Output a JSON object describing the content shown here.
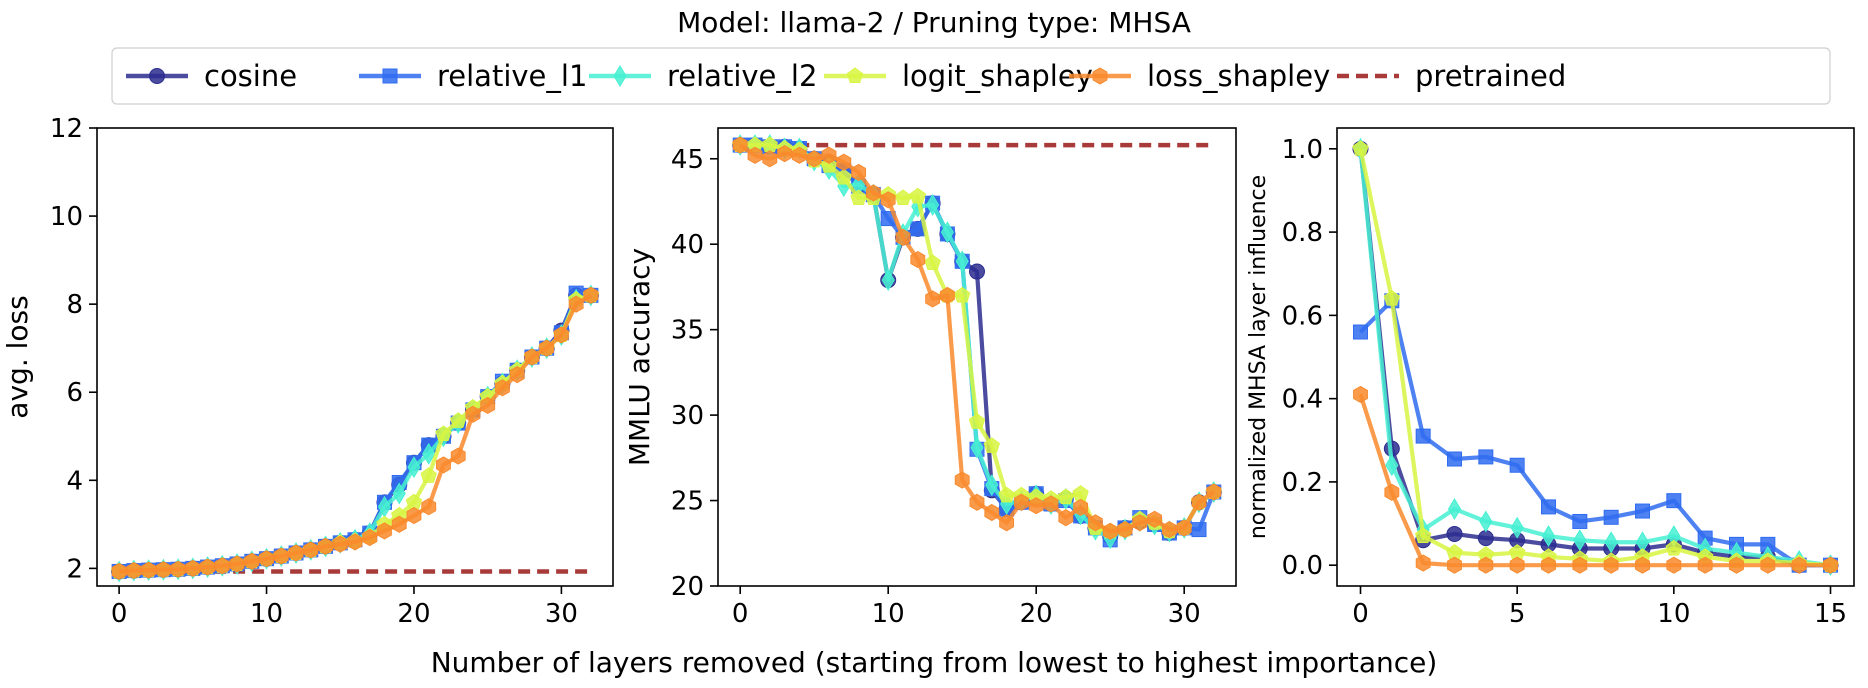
{
  "title": "Model: llama-2 / Pruning type: MHSA",
  "shared_xlabel": "Number of layers removed (starting from lowest to highest importance)",
  "legend": [
    {
      "name": "cosine",
      "color": "#2b2d8f",
      "marker": "circle"
    },
    {
      "name": "relative_l1",
      "color": "#2f6cf0",
      "marker": "square"
    },
    {
      "name": "relative_l2",
      "color": "#46f0d2",
      "marker": "diamond"
    },
    {
      "name": "logit_shapley",
      "color": "#d8f542",
      "marker": "pentagon"
    },
    {
      "name": "loss_shapley",
      "color": "#f98a2d",
      "marker": "hexagon"
    },
    {
      "name": "pretrained",
      "color": "#a83a3a",
      "marker": "dashed-line"
    }
  ],
  "chart_data": [
    {
      "type": "line",
      "xlabel": "",
      "ylabel": "avg. loss",
      "xlim": [
        -1.5,
        33.5
      ],
      "ylim": [
        1.6,
        12
      ],
      "xticks": [
        0,
        10,
        20,
        30
      ],
      "yticks": [
        2,
        4,
        6,
        8,
        10,
        12
      ],
      "grid": false,
      "baseline": {
        "name": "pretrained",
        "y": 1.93,
        "x": [
          0,
          32
        ]
      },
      "series": [
        {
          "name": "cosine",
          "x": [
            0,
            1,
            2,
            3,
            4,
            5,
            6,
            7,
            8,
            9,
            10,
            11,
            12,
            13,
            14,
            15,
            16,
            17,
            18,
            19,
            20,
            21,
            22,
            23,
            24,
            25,
            26,
            27,
            28,
            29,
            30,
            31,
            32
          ],
          "values": [
            1.93,
            1.95,
            1.96,
            1.97,
            1.98,
            2.0,
            2.03,
            2.06,
            2.1,
            2.16,
            2.22,
            2.28,
            2.35,
            2.42,
            2.5,
            2.58,
            2.65,
            2.8,
            3.5,
            3.9,
            4.4,
            4.8,
            5.0,
            5.3,
            5.6,
            5.9,
            6.2,
            6.5,
            6.8,
            7.0,
            7.4,
            8.2,
            8.2
          ]
        },
        {
          "name": "relative_l1",
          "x": [
            0,
            1,
            2,
            3,
            4,
            5,
            6,
            7,
            8,
            9,
            10,
            11,
            12,
            13,
            14,
            15,
            16,
            17,
            18,
            19,
            20,
            21,
            22,
            23,
            24,
            25,
            26,
            27,
            28,
            29,
            30,
            31,
            32
          ],
          "values": [
            1.93,
            1.95,
            1.96,
            1.97,
            1.98,
            2.0,
            2.03,
            2.06,
            2.1,
            2.16,
            2.22,
            2.28,
            2.35,
            2.42,
            2.5,
            2.58,
            2.65,
            2.8,
            3.5,
            3.95,
            4.4,
            4.8,
            5.0,
            5.3,
            5.6,
            5.9,
            6.25,
            6.5,
            6.8,
            7.0,
            7.35,
            8.25,
            8.2
          ]
        },
        {
          "name": "relative_l2",
          "x": [
            0,
            1,
            2,
            3,
            4,
            5,
            6,
            7,
            8,
            9,
            10,
            11,
            12,
            13,
            14,
            15,
            16,
            17,
            18,
            19,
            20,
            21,
            22,
            23,
            24,
            25,
            26,
            27,
            28,
            29,
            30,
            31,
            32
          ],
          "values": [
            1.93,
            1.95,
            1.96,
            1.97,
            1.98,
            2.0,
            2.03,
            2.06,
            2.1,
            2.16,
            2.22,
            2.28,
            2.35,
            2.42,
            2.5,
            2.58,
            2.65,
            2.8,
            3.4,
            3.7,
            4.3,
            4.6,
            5.0,
            5.3,
            5.6,
            5.9,
            6.2,
            6.5,
            6.8,
            7.0,
            7.3,
            8.1,
            8.2
          ]
        },
        {
          "name": "logit_shapley",
          "x": [
            0,
            1,
            2,
            3,
            4,
            5,
            6,
            7,
            8,
            9,
            10,
            11,
            12,
            13,
            14,
            15,
            16,
            17,
            18,
            19,
            20,
            21,
            22,
            23,
            24,
            25,
            26,
            27,
            28,
            29,
            30,
            31,
            32
          ],
          "values": [
            1.93,
            1.95,
            1.96,
            1.97,
            1.98,
            2.0,
            2.03,
            2.06,
            2.1,
            2.16,
            2.22,
            2.28,
            2.35,
            2.42,
            2.5,
            2.58,
            2.62,
            2.72,
            3.0,
            3.2,
            3.5,
            4.1,
            5.05,
            5.35,
            5.65,
            5.9,
            6.2,
            6.5,
            6.8,
            7.0,
            7.3,
            8.1,
            8.2
          ]
        },
        {
          "name": "loss_shapley",
          "x": [
            0,
            1,
            2,
            3,
            4,
            5,
            6,
            7,
            8,
            9,
            10,
            11,
            12,
            13,
            14,
            15,
            16,
            17,
            18,
            19,
            20,
            21,
            22,
            23,
            24,
            25,
            26,
            27,
            28,
            29,
            30,
            31,
            32
          ],
          "values": [
            1.93,
            1.95,
            1.96,
            1.97,
            1.98,
            2.0,
            2.03,
            2.06,
            2.1,
            2.16,
            2.22,
            2.28,
            2.35,
            2.42,
            2.5,
            2.55,
            2.6,
            2.7,
            2.85,
            3.0,
            3.2,
            3.4,
            4.35,
            4.55,
            5.5,
            5.7,
            6.1,
            6.4,
            6.8,
            7.0,
            7.3,
            8.0,
            8.2
          ]
        }
      ]
    },
    {
      "type": "line",
      "xlabel": "",
      "ylabel": "MMLU accuracy",
      "xlim": [
        -1.5,
        33.5
      ],
      "ylim": [
        20,
        46.8
      ],
      "xticks": [
        0,
        10,
        20,
        30
      ],
      "yticks": [
        20,
        25,
        30,
        35,
        40,
        45
      ],
      "grid": false,
      "baseline": {
        "name": "pretrained",
        "y": 45.8,
        "x": [
          0,
          32
        ]
      },
      "series": [
        {
          "name": "cosine",
          "x": [
            0,
            1,
            2,
            3,
            4,
            5,
            6,
            7,
            8,
            9,
            10,
            11,
            12,
            13,
            14,
            15,
            16,
            17,
            18,
            19,
            20,
            21,
            22,
            23,
            24,
            25,
            26,
            27,
            28,
            29,
            30,
            31,
            32
          ],
          "values": [
            45.8,
            45.8,
            45.7,
            45.7,
            45.6,
            45.0,
            44.8,
            44.3,
            43.4,
            42.9,
            37.9,
            40.4,
            40.9,
            42.4,
            40.6,
            39.0,
            38.4,
            25.6,
            24.5,
            24.9,
            25.4,
            24.8,
            25.1,
            24.1,
            23.4,
            22.9,
            23.4,
            23.8,
            23.6,
            23.1,
            23.4,
            24.9,
            25.5
          ]
        },
        {
          "name": "relative_l1",
          "x": [
            0,
            1,
            2,
            3,
            4,
            5,
            6,
            7,
            8,
            9,
            10,
            11,
            12,
            13,
            14,
            15,
            16,
            17,
            18,
            19,
            20,
            21,
            22,
            23,
            24,
            25,
            26,
            27,
            28,
            29,
            30,
            31,
            32
          ],
          "values": [
            45.8,
            45.8,
            45.7,
            45.7,
            45.6,
            45.0,
            44.6,
            44.3,
            43.4,
            42.9,
            41.5,
            40.4,
            40.9,
            42.4,
            40.6,
            39.0,
            28.0,
            25.7,
            24.5,
            24.9,
            25.4,
            24.8,
            25.0,
            24.1,
            23.4,
            22.7,
            23.4,
            24.0,
            23.6,
            23.1,
            23.4,
            23.3,
            25.5
          ]
        },
        {
          "name": "relative_l2",
          "x": [
            0,
            1,
            2,
            3,
            4,
            5,
            6,
            7,
            8,
            9,
            10,
            11,
            12,
            13,
            14,
            15,
            16,
            17,
            18,
            19,
            20,
            21,
            22,
            23,
            24,
            25,
            26,
            27,
            28,
            29,
            30,
            31,
            32
          ],
          "values": [
            45.8,
            45.8,
            45.8,
            45.6,
            45.6,
            44.9,
            44.4,
            43.4,
            43.5,
            42.9,
            37.9,
            40.6,
            42.2,
            42.3,
            40.7,
            39.0,
            28.1,
            25.9,
            24.8,
            25.0,
            25.3,
            24.8,
            25.1,
            24.2,
            23.3,
            22.8,
            23.3,
            23.8,
            23.6,
            23.2,
            23.4,
            24.9,
            25.5
          ]
        },
        {
          "name": "logit_shapley",
          "x": [
            0,
            1,
            2,
            3,
            4,
            5,
            6,
            7,
            8,
            9,
            10,
            11,
            12,
            13,
            14,
            15,
            16,
            17,
            18,
            19,
            20,
            21,
            22,
            23,
            24,
            25,
            26,
            27,
            28,
            29,
            30,
            31,
            32
          ],
          "values": [
            45.8,
            45.8,
            45.8,
            45.6,
            45.5,
            44.9,
            44.6,
            43.9,
            42.7,
            42.7,
            42.9,
            42.7,
            42.8,
            38.9,
            37.0,
            37.0,
            29.6,
            28.2,
            25.3,
            25.3,
            25.2,
            25.1,
            25.2,
            25.4,
            23.4,
            23.2,
            23.3,
            23.9,
            23.7,
            23.2,
            23.4,
            24.9,
            25.5
          ]
        },
        {
          "name": "loss_shapley",
          "x": [
            0,
            1,
            2,
            3,
            4,
            5,
            6,
            7,
            8,
            9,
            10,
            11,
            12,
            13,
            14,
            15,
            16,
            17,
            18,
            19,
            20,
            21,
            22,
            23,
            24,
            25,
            26,
            27,
            28,
            29,
            30,
            31,
            32
          ],
          "values": [
            45.8,
            45.2,
            45.0,
            45.3,
            45.2,
            45.0,
            45.2,
            44.8,
            44.2,
            43.0,
            42.6,
            40.4,
            39.1,
            36.8,
            37.0,
            26.2,
            24.9,
            24.3,
            23.7,
            24.9,
            24.7,
            24.8,
            24.0,
            24.6,
            23.7,
            23.2,
            23.3,
            23.7,
            23.9,
            23.3,
            23.4,
            24.9,
            25.5
          ]
        }
      ]
    },
    {
      "type": "line",
      "xlabel": "",
      "ylabel": "normalized MHSA layer influence",
      "xlim": [
        -0.75,
        15.75
      ],
      "ylim": [
        -0.05,
        1.05
      ],
      "xticks": [
        0,
        5,
        10,
        15
      ],
      "yticks": [
        0.0,
        0.2,
        0.4,
        0.6,
        0.8,
        1.0
      ],
      "grid": false,
      "series": [
        {
          "name": "cosine",
          "x": [
            0,
            1,
            2,
            3,
            4,
            5,
            6,
            7,
            8,
            9,
            10,
            11,
            12,
            13,
            14,
            15
          ],
          "values": [
            1.0,
            0.28,
            0.06,
            0.075,
            0.065,
            0.06,
            0.05,
            0.04,
            0.04,
            0.04,
            0.05,
            0.03,
            0.02,
            0.02,
            0.0,
            0.0
          ]
        },
        {
          "name": "relative_l1",
          "x": [
            0,
            1,
            2,
            3,
            4,
            5,
            6,
            7,
            8,
            9,
            10,
            11,
            12,
            13,
            14,
            15
          ],
          "values": [
            0.56,
            0.635,
            0.31,
            0.255,
            0.26,
            0.24,
            0.14,
            0.105,
            0.115,
            0.13,
            0.155,
            0.065,
            0.05,
            0.05,
            0.0,
            0.0
          ]
        },
        {
          "name": "relative_l2",
          "x": [
            0,
            1,
            2,
            3,
            4,
            5,
            6,
            7,
            8,
            9,
            10,
            11,
            12,
            13,
            14,
            15
          ],
          "values": [
            1.0,
            0.24,
            0.085,
            0.135,
            0.105,
            0.09,
            0.07,
            0.06,
            0.055,
            0.055,
            0.07,
            0.04,
            0.03,
            0.02,
            0.01,
            0.0
          ]
        },
        {
          "name": "logit_shapley",
          "x": [
            0,
            1,
            2,
            3,
            4,
            5,
            6,
            7,
            8,
            9,
            10,
            11,
            12,
            13,
            14,
            15
          ],
          "values": [
            1.0,
            0.64,
            0.07,
            0.03,
            0.025,
            0.03,
            0.02,
            0.015,
            0.01,
            0.02,
            0.04,
            0.02,
            0.01,
            0.01,
            0.005,
            0.0
          ]
        },
        {
          "name": "loss_shapley",
          "x": [
            0,
            1,
            2,
            3,
            4,
            5,
            6,
            7,
            8,
            9,
            10,
            11,
            12,
            13,
            14,
            15
          ],
          "values": [
            0.41,
            0.175,
            0.005,
            0.0,
            0.0,
            0.0,
            0.0,
            0.0,
            0.0,
            0.0,
            0.0,
            0.0,
            0.0,
            0.0,
            0.0,
            0.0
          ]
        }
      ]
    }
  ]
}
